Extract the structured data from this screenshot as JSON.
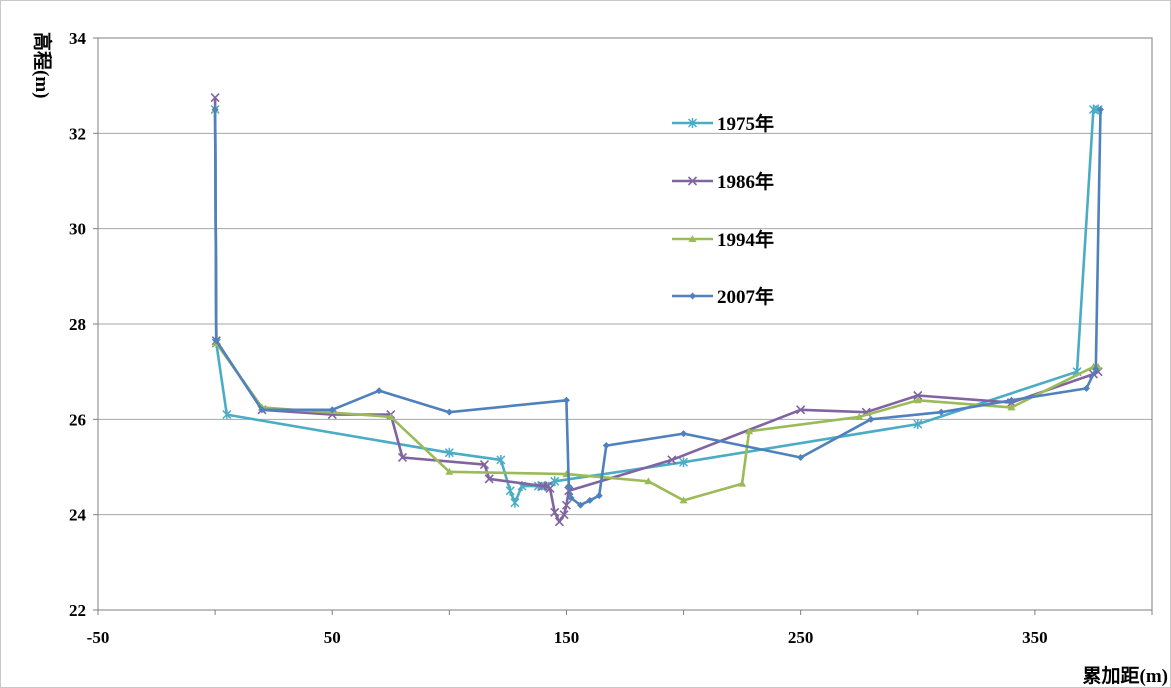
{
  "chart_data": {
    "type": "line",
    "xlabel": "累加距(m)",
    "ylabel": "高程(m)",
    "xlim": [
      -50,
      400
    ],
    "ylim": [
      22,
      34
    ],
    "xticks": [
      "-50",
      "50",
      "150",
      "250",
      "350"
    ],
    "xtick_values": [
      -50,
      50,
      150,
      250,
      350
    ],
    "yticks": [
      "22",
      "24",
      "26",
      "28",
      "30",
      "32",
      "34"
    ],
    "ytick_values": [
      22,
      24,
      26,
      28,
      30,
      32,
      34
    ],
    "grid": "horizontal",
    "legend_position": "upper-middle",
    "series": [
      {
        "name": "1975年",
        "color": "#4bacc6",
        "marker": "asterisk",
        "x": [
          0,
          0.5,
          5,
          100,
          122,
          126,
          128,
          131,
          138,
          141,
          145,
          200,
          300,
          368,
          375,
          377
        ],
        "y": [
          32.5,
          27.6,
          26.1,
          25.3,
          25.15,
          24.5,
          24.25,
          24.6,
          24.6,
          24.6,
          24.7,
          25.1,
          25.9,
          27.0,
          32.5,
          32.5
        ]
      },
      {
        "name": "1986年",
        "color": "#8064a2",
        "marker": "x",
        "x": [
          0,
          0.5,
          20,
          50,
          75,
          80,
          115,
          117,
          140,
          142,
          143,
          145,
          147,
          149,
          150,
          151,
          195,
          250,
          278,
          300,
          340,
          375,
          377
        ],
        "y": [
          32.75,
          27.65,
          26.2,
          26.1,
          26.1,
          25.2,
          25.05,
          24.75,
          24.6,
          24.6,
          24.55,
          24.05,
          23.85,
          24.0,
          24.2,
          24.5,
          25.15,
          26.2,
          26.15,
          26.5,
          26.35,
          26.95,
          27.0
        ]
      },
      {
        "name": "1994年",
        "color": "#9bbb59",
        "marker": "triangle",
        "x": [
          0,
          0.5,
          20,
          75,
          100,
          150,
          185,
          200,
          225,
          228,
          275,
          300,
          340,
          375,
          377
        ],
        "y": [
          32.5,
          27.6,
          26.25,
          26.05,
          24.9,
          24.85,
          24.7,
          24.3,
          24.65,
          25.75,
          26.05,
          26.4,
          26.25,
          27.1,
          27.1
        ]
      },
      {
        "name": "2007年",
        "color": "#4f81bd",
        "marker": "diamond",
        "x": [
          0,
          0.5,
          20,
          50,
          70,
          100,
          150,
          151,
          152,
          156,
          160,
          164,
          167,
          200,
          250,
          280,
          310,
          340,
          372,
          376,
          378
        ],
        "y": [
          32.5,
          27.65,
          26.2,
          26.2,
          26.6,
          26.15,
          26.4,
          24.6,
          24.35,
          24.2,
          24.3,
          24.4,
          25.45,
          25.7,
          25.2,
          26.0,
          26.15,
          26.4,
          26.65,
          27.05,
          32.5
        ]
      }
    ]
  }
}
